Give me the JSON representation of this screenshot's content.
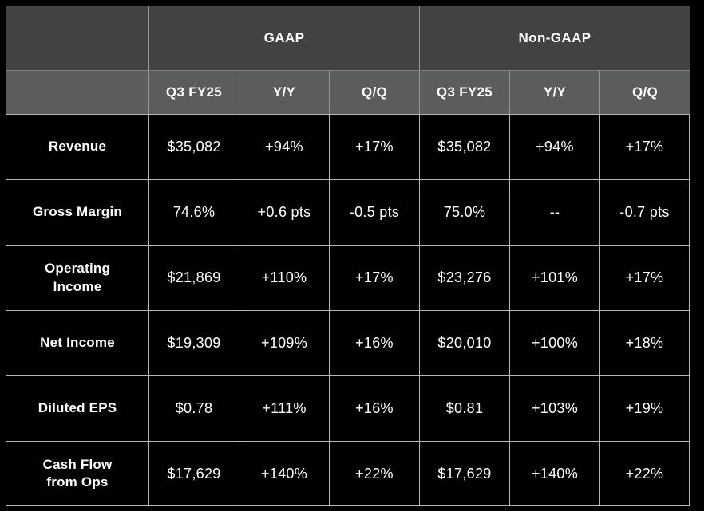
{
  "chart_data": {
    "type": "table",
    "column_groups": [
      {
        "label": "GAAP"
      },
      {
        "label": "Non-GAAP"
      }
    ],
    "columns": [
      "Q3 FY25",
      "Y/Y",
      "Q/Q",
      "Q3 FY25",
      "Y/Y",
      "Q/Q"
    ],
    "rows": [
      {
        "label": "Revenue",
        "values": [
          "$35,082",
          "+94%",
          "+17%",
          "$35,082",
          "+94%",
          "+17%"
        ]
      },
      {
        "label": "Gross Margin",
        "values": [
          "74.6%",
          "+0.6 pts",
          "-0.5 pts",
          "75.0%",
          "--",
          "-0.7 pts"
        ]
      },
      {
        "label": "Operating\nIncome",
        "values": [
          "$21,869",
          "+110%",
          "+17%",
          "$23,276",
          "+101%",
          "+17%"
        ]
      },
      {
        "label": "Net Income",
        "values": [
          "$19,309",
          "+109%",
          "+16%",
          "$20,010",
          "+100%",
          "+18%"
        ]
      },
      {
        "label": "Diluted EPS",
        "values": [
          "$0.78",
          "+111%",
          "+16%",
          "$0.81",
          "+103%",
          "+19%"
        ]
      },
      {
        "label": "Cash Flow\nfrom Ops",
        "values": [
          "$17,629",
          "+140%",
          "+22%",
          "$17,629",
          "+140%",
          "+22%"
        ]
      }
    ]
  },
  "colors": {
    "header_group_bg": "#424244",
    "header_cols_bg": "#5b5c5e",
    "body_bg": "#010101",
    "grid_line": "#b5b5b5",
    "text": "#ffffff"
  }
}
